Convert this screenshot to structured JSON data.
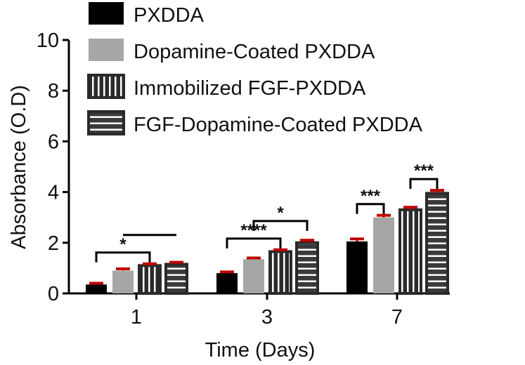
{
  "chart_data": {
    "type": "bar",
    "xlabel": "Time (Days)",
    "ylabel": "Absorbance (O.D)",
    "ylim": [
      0,
      10
    ],
    "yticks": [
      "0",
      "2",
      "4",
      "6",
      "8",
      "10"
    ],
    "categories": [
      "1",
      "3",
      "7"
    ],
    "series": [
      {
        "name": "PXDDA",
        "fill": "#000000",
        "pattern": "solid",
        "values": [
          0.35,
          0.8,
          2.05
        ],
        "errors": [
          0.05,
          0.05,
          0.1
        ]
      },
      {
        "name": "Dopamine-Coated PXDDA",
        "fill": "#a6a6a6",
        "pattern": "solid",
        "values": [
          0.9,
          1.35,
          3.0
        ],
        "errors": [
          0.07,
          0.05,
          0.08
        ]
      },
      {
        "name": "Immobilized FGF-PXDDA",
        "fill": "#2b2b2b",
        "pattern": "vertical-stripes",
        "values": [
          1.1,
          1.65,
          3.3
        ],
        "errors": [
          0.07,
          0.07,
          0.1
        ]
      },
      {
        "name": "FGF-Dopamine-Coated PXDDA",
        "fill": "#3a3a3a",
        "pattern": "horizontal-stripes",
        "values": [
          1.15,
          2.0,
          3.95
        ],
        "errors": [
          0.08,
          0.1,
          0.12
        ]
      }
    ],
    "error_color": "#c00000",
    "significance": [
      {
        "label": "*",
        "category": "1",
        "from_series": 0,
        "to_series": 2
      },
      {
        "label": "",
        "category": "1",
        "from_series": 1,
        "to_series": 3
      },
      {
        "label": "****",
        "category": "3",
        "from_series": 0,
        "to_series": 2
      },
      {
        "label": "*",
        "category": "3",
        "from_series": 1,
        "to_series": 3
      },
      {
        "label": "***",
        "category": "7",
        "from_series": 0,
        "to_series": 1
      },
      {
        "label": "***",
        "category": "7",
        "from_series": 2,
        "to_series": 3
      }
    ],
    "legend_position": "top"
  }
}
